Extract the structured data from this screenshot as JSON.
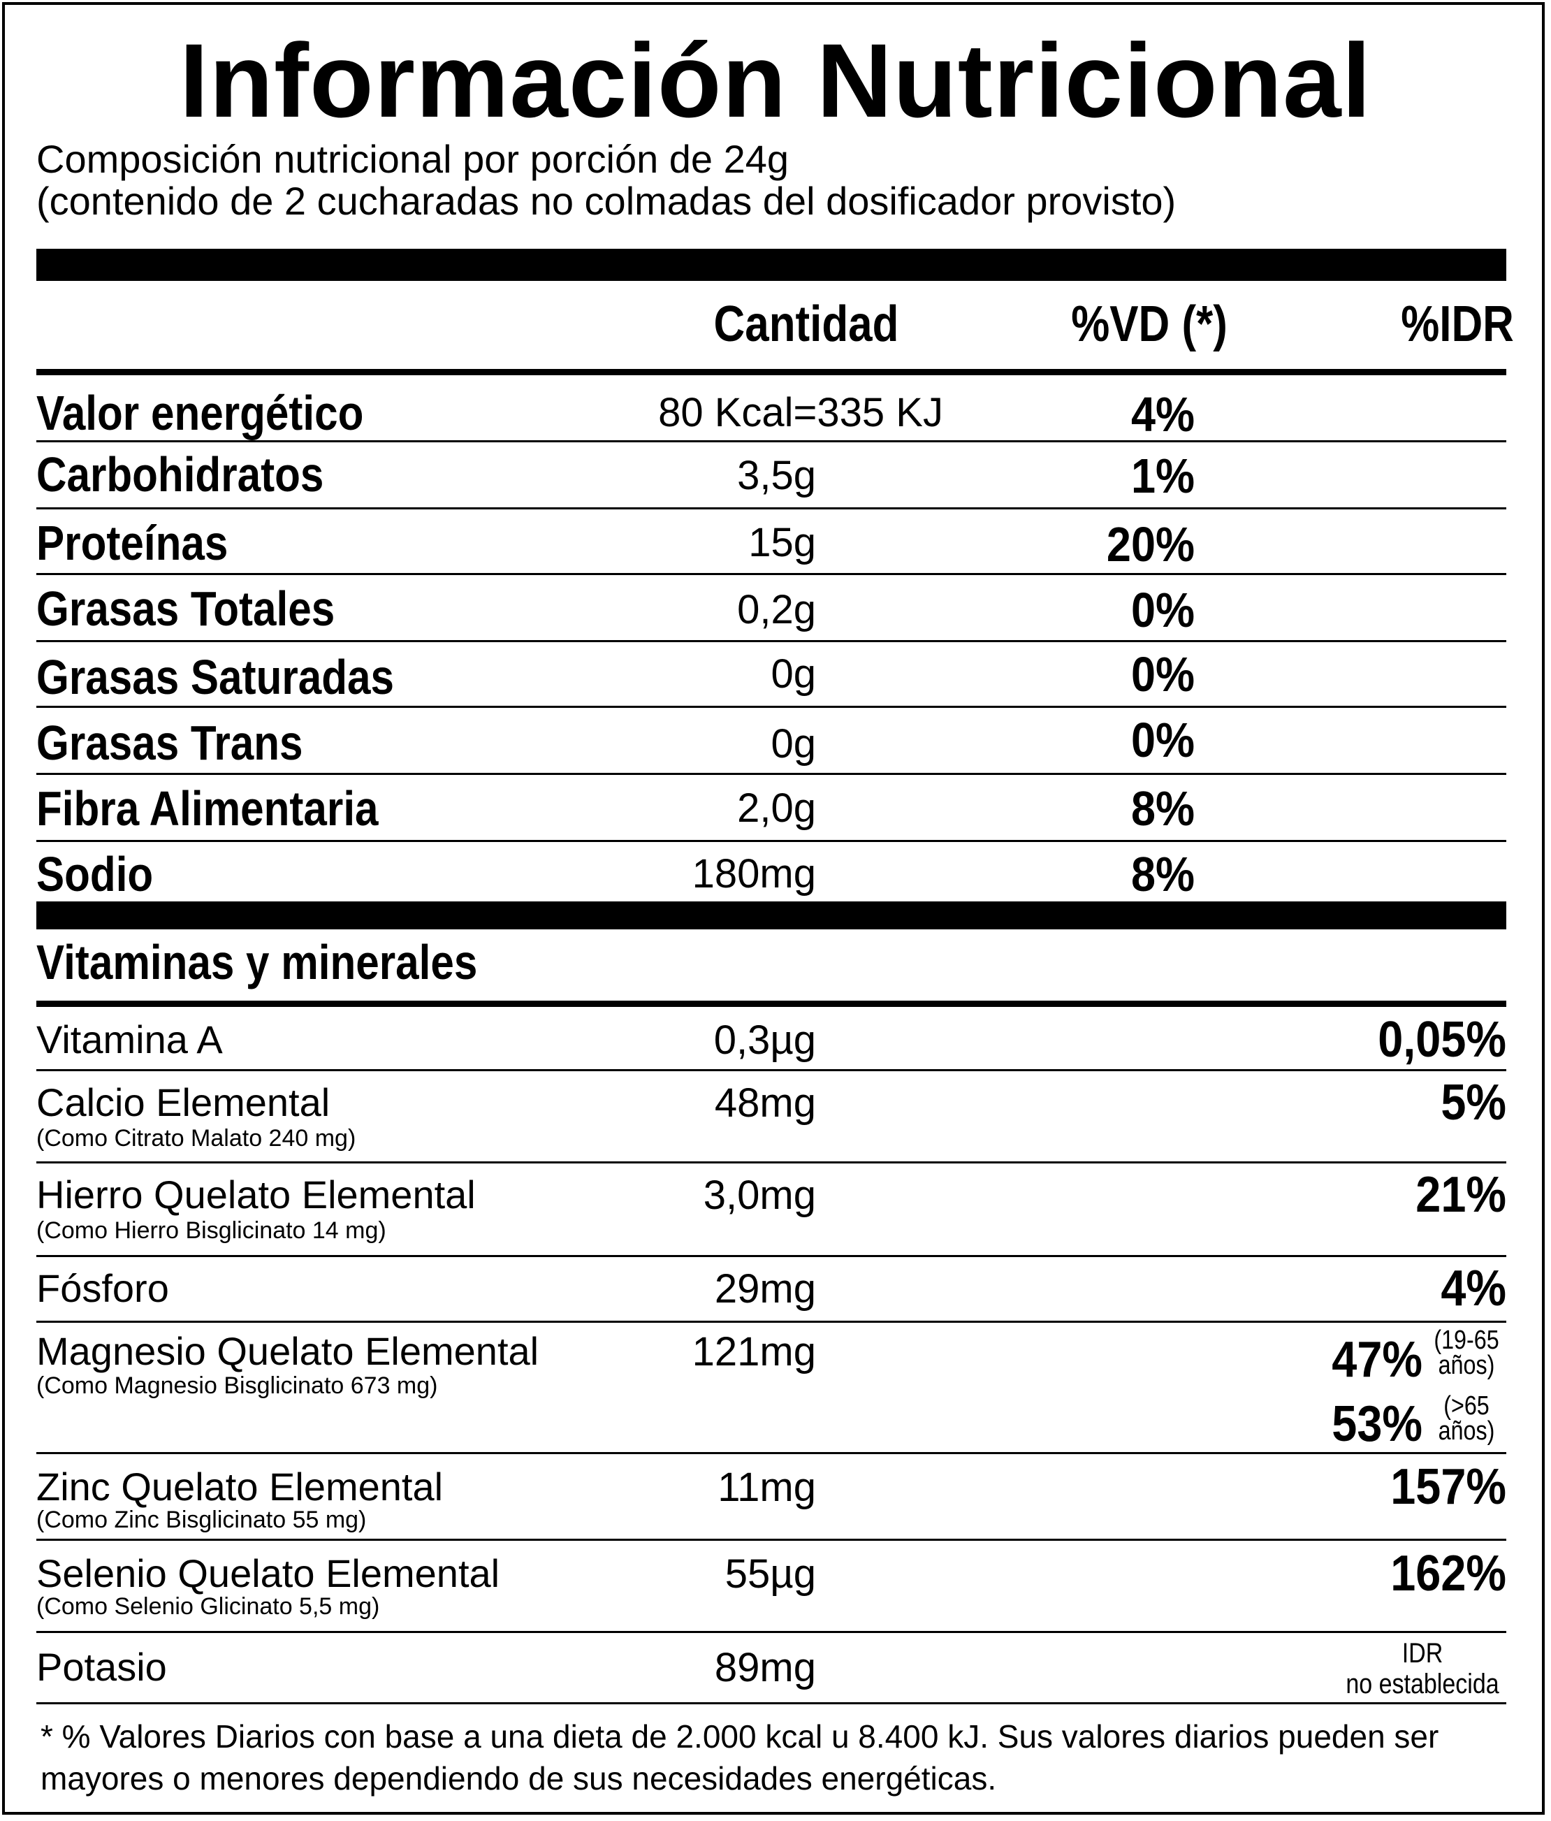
{
  "title": "Información Nutricional",
  "subtitle_line1": "Composición nutricional por porción de 24g",
  "subtitle_line2": "(contenido de 2 cucharadas no colmadas del dosificador provisto)",
  "headers": {
    "amount": "Cantidad",
    "dv": "%VD (*)",
    "idr": "%IDR"
  },
  "nutrients": [
    {
      "name": "Valor energético",
      "amount": "80 Kcal=335 KJ",
      "dv": "4%"
    },
    {
      "name": "Carbohidratos",
      "amount": "3,5g",
      "dv": "1%"
    },
    {
      "name": "Proteínas",
      "amount": "15g",
      "dv": "20%"
    },
    {
      "name": "Grasas Totales",
      "amount": "0,2g",
      "dv": "0%"
    },
    {
      "name": "Grasas Saturadas",
      "amount": "0g",
      "dv": "0%"
    },
    {
      "name": "Grasas Trans",
      "amount": "0g",
      "dv": "0%"
    },
    {
      "name": "Fibra Alimentaria",
      "amount": "2,0g",
      "dv": "8%"
    },
    {
      "name": "Sodio",
      "amount": "180mg",
      "dv": "8%"
    }
  ],
  "vitamins_title": "Vitaminas y minerales",
  "vitamins": [
    {
      "name": "Vitamina A",
      "note": "",
      "amount": "0,3µg",
      "idr": "0,05%"
    },
    {
      "name": "Calcio Elemental",
      "note": "(Como Citrato Malato 240 mg)",
      "amount": "48mg",
      "idr": "5%"
    },
    {
      "name": "Hierro Quelato Elemental",
      "note": "(Como Hierro Bisglicinato 14 mg)",
      "amount": "3,0mg",
      "idr": "21%"
    },
    {
      "name": "Fósforo",
      "note": "",
      "amount": "29mg",
      "idr": "4%"
    },
    {
      "name": "Magnesio Quelato Elemental",
      "note": "(Como Magnesio Bisglicinato 673 mg)",
      "amount": "121mg",
      "idr": "47%",
      "idr_note": "(19-65 años)",
      "idr2": "53%",
      "idr2_note": "(>65 años)"
    },
    {
      "name": "Zinc Quelato Elemental",
      "note": "(Como Zinc Bisglicinato 55 mg)",
      "amount": "11mg",
      "idr": "157%"
    },
    {
      "name": "Selenio Quelato Elemental",
      "note": "(Como Selenio Glicinato 5,5 mg)",
      "amount": "55µg",
      "idr": "162%"
    },
    {
      "name": "Potasio",
      "note": "",
      "amount": "89mg",
      "idr_text_line1": "IDR",
      "idr_text_line2": "no establecida"
    }
  ],
  "footnote_line1": "* % Valores Diarios con base a una dieta de 2.000 kcal u 8.400 kJ. Sus valores diarios pueden ser",
  "footnote_line2": "mayores o menores dependiendo de sus necesidades energéticas."
}
